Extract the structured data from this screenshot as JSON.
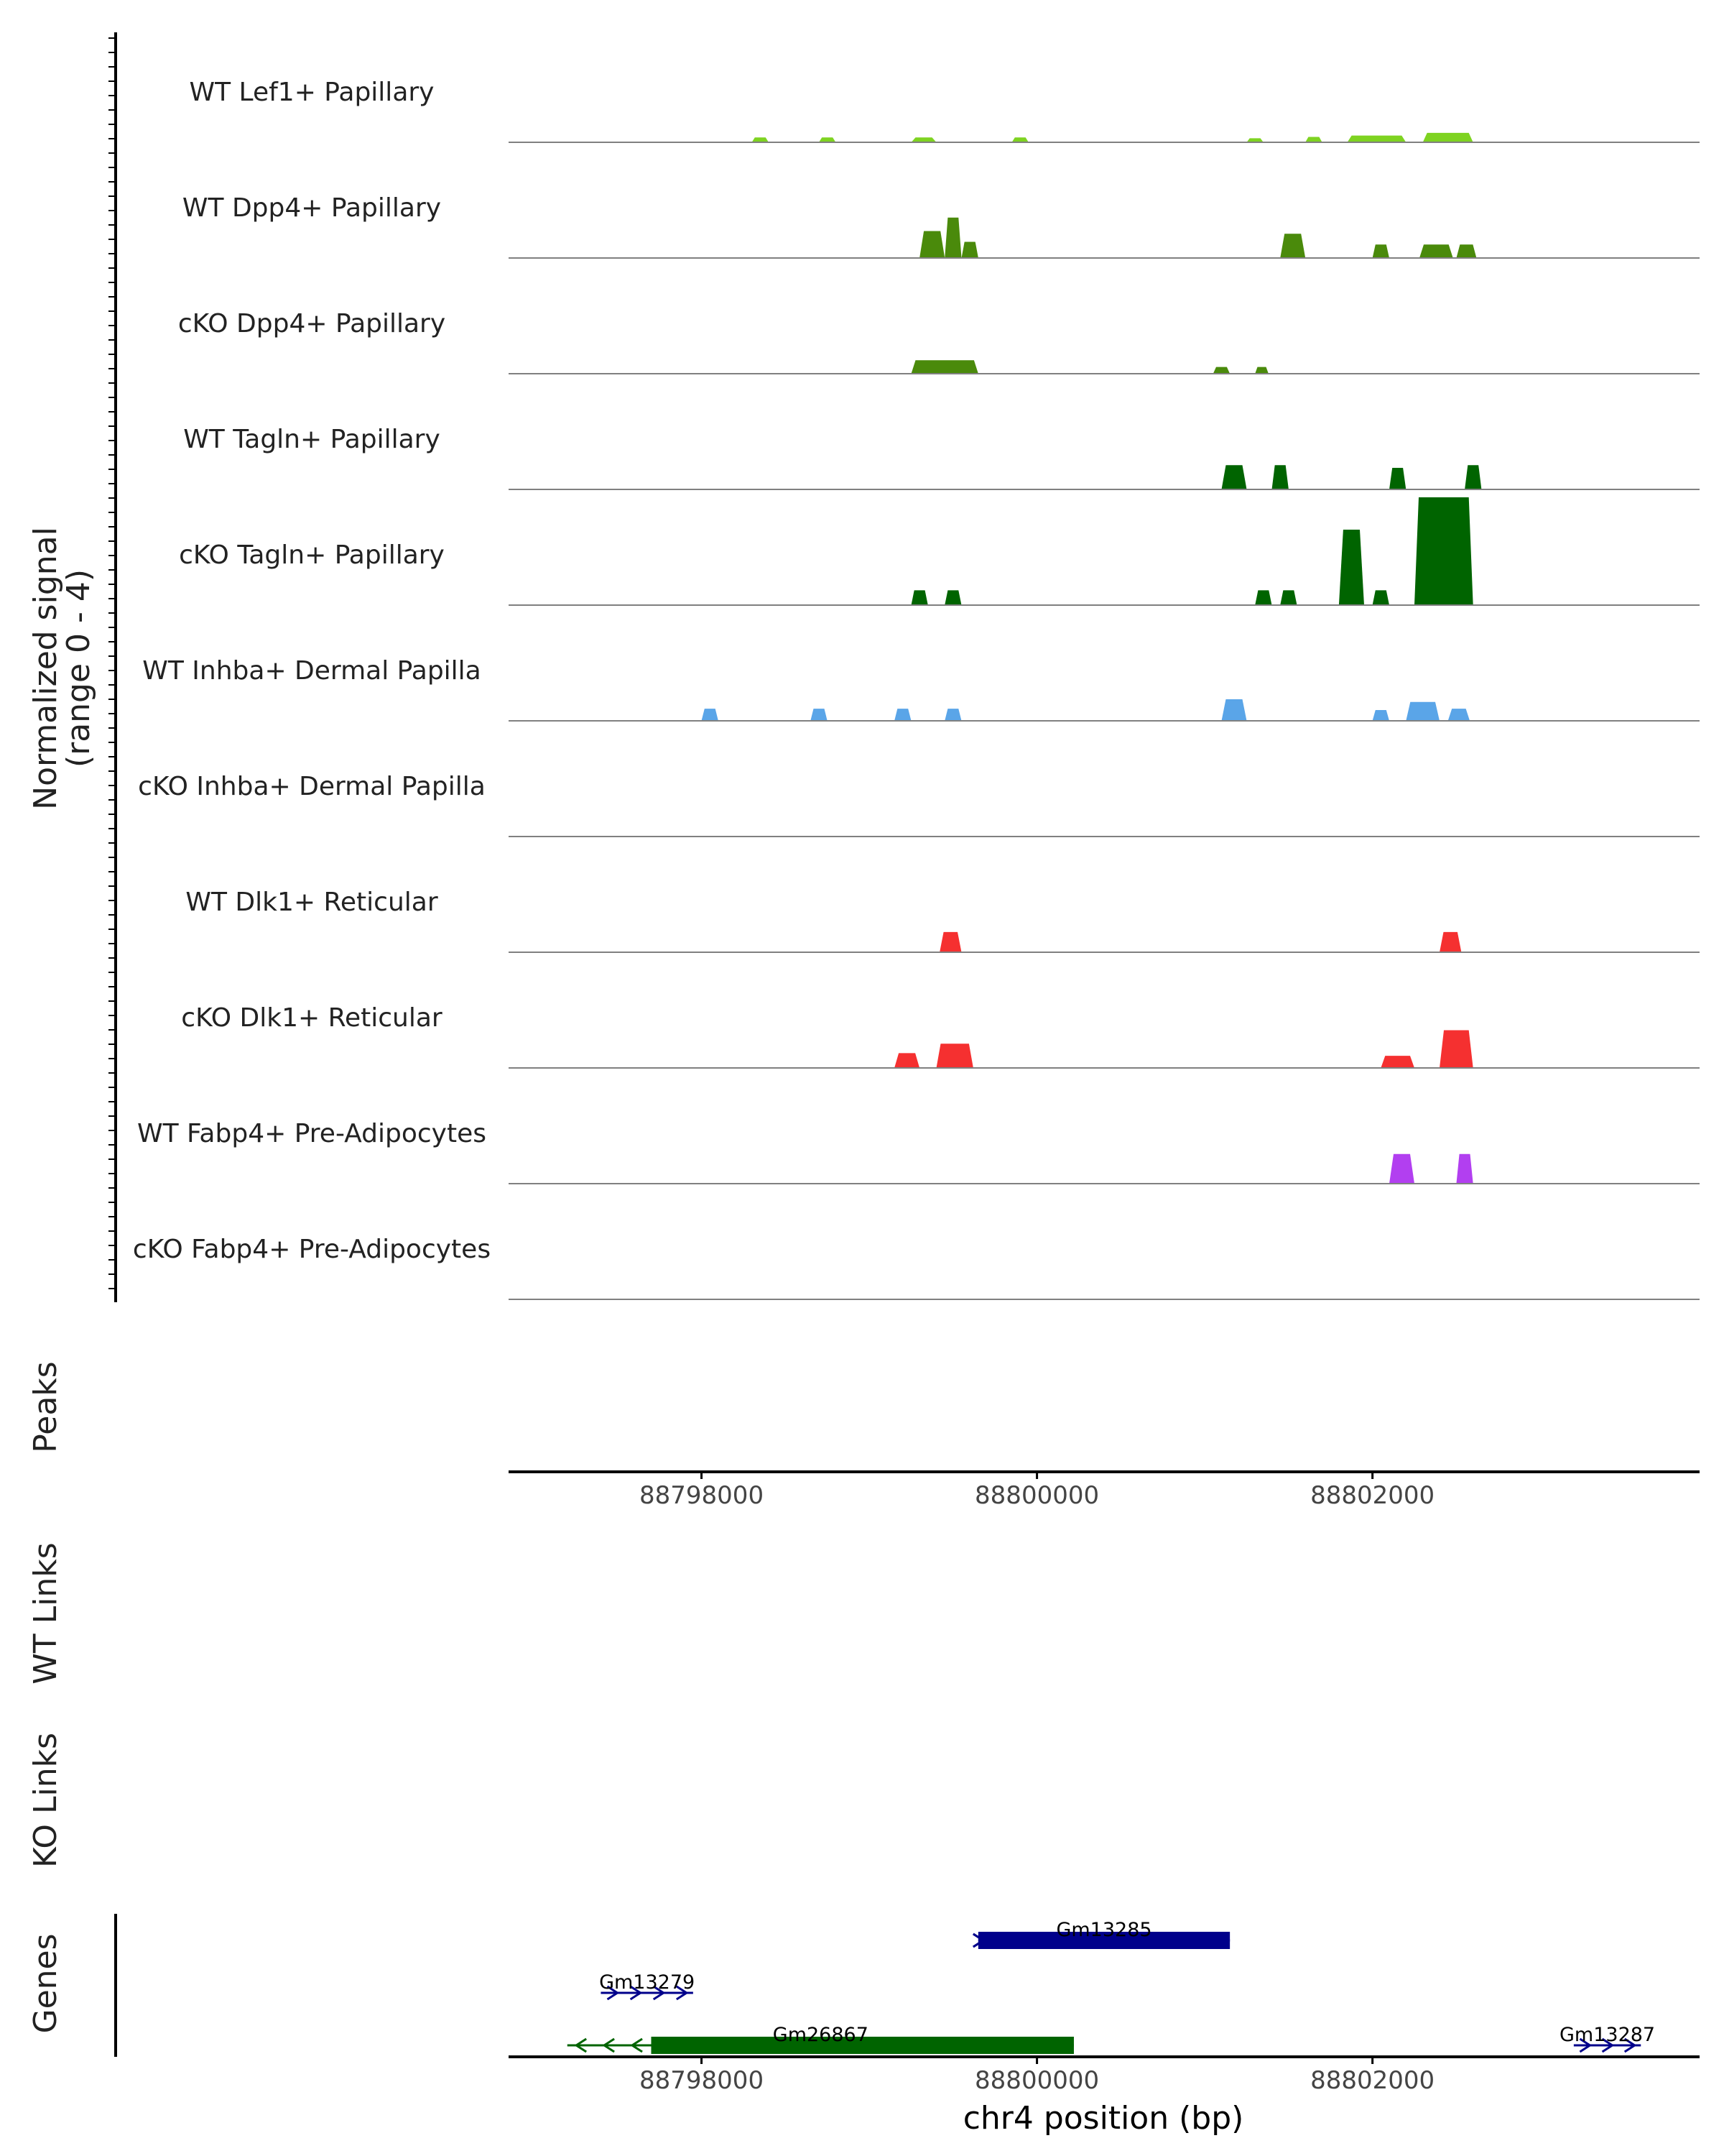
{
  "chart_data": {
    "type": "area",
    "region": "chr4",
    "xlabel": "chr4 position (bp)",
    "xlim": [
      88796850,
      88803950
    ],
    "x_ticks": [
      {
        "value": 88798000,
        "label": "88798000"
      },
      {
        "value": 88800000,
        "label": "88800000"
      },
      {
        "value": 88802000,
        "label": "88802000"
      }
    ],
    "signal_ylabel": "Normalized signal",
    "signal_ylabel_range": "(range 0 - 4)",
    "ylim": [
      0,
      4
    ],
    "peaks_label": "Peaks",
    "wt_links_label": "WT Links",
    "ko_links_label": "KO Links",
    "genes_label": "Genes",
    "tracks": [
      {
        "name": "WT Lef1+ Papillary",
        "color": "#7ED321",
        "peaks": [
          [
            88798300,
            88798400,
            0.18
          ],
          [
            88798700,
            88798800,
            0.18
          ],
          [
            88799250,
            88799400,
            0.18
          ],
          [
            88799850,
            88799950,
            0.18
          ],
          [
            88801250,
            88801350,
            0.15
          ],
          [
            88801600,
            88801700,
            0.2
          ],
          [
            88801850,
            88802200,
            0.25
          ],
          [
            88802300,
            88802600,
            0.35
          ]
        ]
      },
      {
        "name": "WT Dpp4+ Papillary",
        "color": "#4A8A0B",
        "peaks": [
          [
            88799300,
            88799450,
            1.0
          ],
          [
            88799450,
            88799550,
            1.5
          ],
          [
            88799550,
            88799650,
            0.6
          ],
          [
            88801450,
            88801600,
            0.9
          ],
          [
            88802000,
            88802100,
            0.5
          ],
          [
            88802280,
            88802480,
            0.5
          ],
          [
            88802500,
            88802620,
            0.5
          ]
        ]
      },
      {
        "name": "cKO Dpp4+ Papillary",
        "color": "#4A8A0B",
        "peaks": [
          [
            88799250,
            88799650,
            0.5
          ],
          [
            88801050,
            88801150,
            0.25
          ],
          [
            88801300,
            88801380,
            0.25
          ]
        ]
      },
      {
        "name": "WT Tagln+ Papillary",
        "color": "#006400",
        "peaks": [
          [
            88801100,
            88801250,
            0.9
          ],
          [
            88801400,
            88801500,
            0.9
          ],
          [
            88802100,
            88802200,
            0.8
          ],
          [
            88802550,
            88802650,
            0.9
          ]
        ]
      },
      {
        "name": "cKO Tagln+ Papillary",
        "color": "#006400",
        "peaks": [
          [
            88799250,
            88799350,
            0.55
          ],
          [
            88799450,
            88799550,
            0.55
          ],
          [
            88801300,
            88801400,
            0.55
          ],
          [
            88801450,
            88801550,
            0.55
          ],
          [
            88801800,
            88801950,
            2.8
          ],
          [
            88802000,
            88802100,
            0.55
          ],
          [
            88802250,
            88802600,
            4.0
          ]
        ]
      },
      {
        "name": "WT Inhba+ Dermal Papilla",
        "color": "#5AA5E8",
        "peaks": [
          [
            88798000,
            88798100,
            0.45
          ],
          [
            88798650,
            88798750,
            0.45
          ],
          [
            88799150,
            88799250,
            0.45
          ],
          [
            88799450,
            88799550,
            0.45
          ],
          [
            88801100,
            88801250,
            0.8
          ],
          [
            88802000,
            88802100,
            0.4
          ],
          [
            88802200,
            88802400,
            0.7
          ],
          [
            88802450,
            88802580,
            0.45
          ]
        ]
      },
      {
        "name": "cKO Inhba+ Dermal Papilla",
        "color": "#5AA5E8",
        "peaks": []
      },
      {
        "name": "WT Dlk1+ Reticular",
        "color": "#F53030",
        "peaks": [
          [
            88799420,
            88799550,
            0.75
          ],
          [
            88802400,
            88802530,
            0.75
          ]
        ]
      },
      {
        "name": "cKO Dlk1+ Reticular",
        "color": "#F53030",
        "peaks": [
          [
            88799150,
            88799300,
            0.55
          ],
          [
            88799400,
            88799620,
            0.9
          ],
          [
            88802050,
            88802250,
            0.45
          ],
          [
            88802400,
            88802600,
            1.4
          ]
        ]
      },
      {
        "name": "WT Fabp4+ Pre-Adipocytes",
        "color": "#B23FF0",
        "peaks": [
          [
            88802100,
            88802250,
            1.1
          ],
          [
            88802500,
            88802600,
            1.1
          ]
        ]
      },
      {
        "name": "cKO Fabp4+ Pre-Adipocytes",
        "color": "#B23FF0",
        "peaks": []
      }
    ],
    "genes": [
      {
        "name": "Gm13285",
        "start": 88799650,
        "end": 88801150,
        "strand": "+",
        "row": 1,
        "color": "#00008B"
      },
      {
        "name": "Gm13279",
        "start": 88797400,
        "end": 88797950,
        "strand": "+",
        "row": 2,
        "color": "#00008B"
      },
      {
        "name": "Gm26867",
        "start": 88797200,
        "end": 88800220,
        "thick_start": 88797700,
        "strand": "-",
        "row": 3,
        "color": "#006400"
      },
      {
        "name": "Gm13287",
        "start": 88803200,
        "end": 88803600,
        "strand": "+",
        "row": 3,
        "color": "#00008B"
      }
    ]
  }
}
